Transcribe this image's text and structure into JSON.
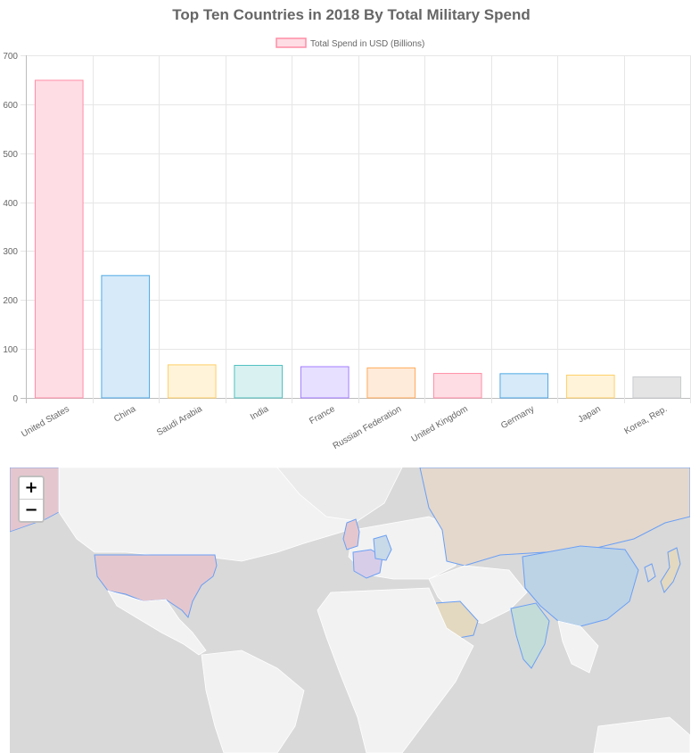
{
  "chart_data": {
    "type": "bar",
    "title": "Top Ten Countries in 2018 By Total Military Spend",
    "legend": {
      "label": "Total Spend in USD (Billions)",
      "position": "top"
    },
    "categories": [
      "United States",
      "China",
      "Saudi Arabia",
      "India",
      "France",
      "Russian Federation",
      "United Kingdom",
      "Germany",
      "Japan",
      "Korea, Rep."
    ],
    "series": [
      {
        "name": "Total Spend in USD (Billions)",
        "values": [
          649,
          250,
          67.6,
          66.5,
          63.8,
          61.4,
          50,
          49.5,
          46.6,
          43.1
        ]
      }
    ],
    "ylim": [
      0,
      700
    ],
    "yticks": [
      0,
      100,
      200,
      300,
      400,
      500,
      600,
      700
    ],
    "grid": true,
    "colors": {
      "fill": [
        "#ffdde4",
        "#d6eaf9",
        "#fff3da",
        "#d9f1f1",
        "#e8e0ff",
        "#ffebd9",
        "#ffdde4",
        "#d6eaf9",
        "#fff3da",
        "#e4e4e4"
      ],
      "border": [
        "#ff8da6",
        "#4ea8e6",
        "#ffcf66",
        "#4fc0c0",
        "#a27dff",
        "#ffaa5a",
        "#ff8da6",
        "#4ea8e6",
        "#ffcf66",
        "#c9cbcf"
      ]
    }
  },
  "map": {
    "zoom_in_label": "+",
    "zoom_out_label": "−",
    "colors": {
      "ocean": "#d9d9d9",
      "land": "#f2f2f2",
      "border": "#ffffff",
      "highlight_border": "#6a9ff5"
    },
    "highlighted": [
      {
        "name": "United States",
        "fill": "#e4c7ce"
      },
      {
        "name": "China",
        "fill": "#bcd3e6"
      },
      {
        "name": "Saudi Arabia",
        "fill": "#e3d8c0"
      },
      {
        "name": "India",
        "fill": "#c3dcd8"
      },
      {
        "name": "France",
        "fill": "#d8cde8"
      },
      {
        "name": "Russian Federation",
        "fill": "#e4d8cc"
      },
      {
        "name": "United Kingdom",
        "fill": "#e4c7ce"
      },
      {
        "name": "Germany",
        "fill": "#c8d9e8"
      },
      {
        "name": "Japan",
        "fill": "#e3d8c0"
      },
      {
        "name": "Korea, Rep.",
        "fill": "#dcdcdc"
      }
    ]
  }
}
